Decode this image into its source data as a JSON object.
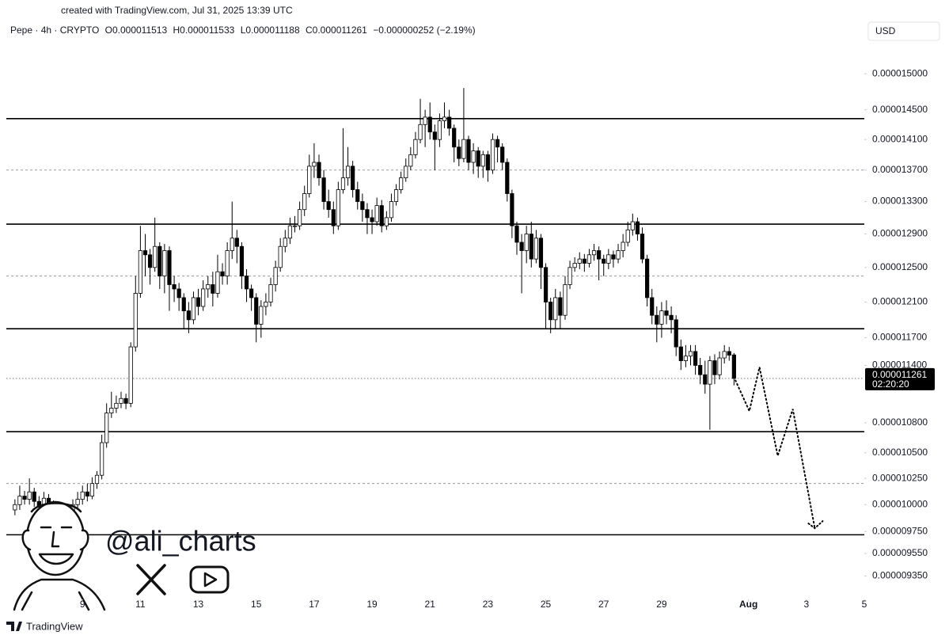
{
  "chart_data": {
    "type": "candlestick",
    "watermark": "created with TradingView.com, Jul 31, 2025 13:39 UTC",
    "symbol": "Pepe · 4h · CRYPTO",
    "ohlc_text": [
      "O0.000011513",
      "H0.000011533",
      "L0.000011188",
      "C0.000011261"
    ],
    "change_text": "−0.000000252 (−2.19%)",
    "currency": "USD",
    "handle": "@ali_charts",
    "footer": "TradingView",
    "log_scale": true,
    "grid": false,
    "up_color": "#ffffff",
    "down_color": "#000000",
    "wick_color": "#000000",
    "xlim": [
      6.37,
      36
    ],
    "xticks": [
      9,
      11,
      13,
      15,
      17,
      19,
      21,
      23,
      25,
      27,
      29,
      {
        "value": 32,
        "label": "Aug"
      },
      {
        "value": 34,
        "label": "3"
      },
      {
        "value": 36,
        "label": "5"
      }
    ],
    "ylim": [
      9.16e-06,
      1.549e-05
    ],
    "yticks": [
      {
        "value": 1.5e-05,
        "label": "0.000015000"
      },
      {
        "value": 1.45e-05,
        "label": "0.000014500"
      },
      {
        "value": 1.41e-05,
        "label": "0.000014100"
      },
      {
        "value": 1.37e-05,
        "label": "0.000013700"
      },
      {
        "value": 1.33e-05,
        "label": "0.000013300"
      },
      {
        "value": 1.29e-05,
        "label": "0.000012900"
      },
      {
        "value": 1.25e-05,
        "label": "0.000012500"
      },
      {
        "value": 1.21e-05,
        "label": "0.000012100"
      },
      {
        "value": 1.17e-05,
        "label": "0.000011700"
      },
      {
        "value": 1.14e-05,
        "label": "0.000011400"
      },
      {
        "value": 1.08e-05,
        "label": "0.000010800"
      },
      {
        "value": 1.05e-05,
        "label": "0.000010500"
      },
      {
        "value": 1.025e-05,
        "label": "0.000010250"
      },
      {
        "value": 1e-05,
        "label": "0.000010000"
      },
      {
        "value": 9.75e-06,
        "label": "0.000009750"
      },
      {
        "value": 9.55e-06,
        "label": "0.000009550"
      },
      {
        "value": 9.35e-06,
        "label": "0.000009350"
      }
    ],
    "last_price": {
      "value": 1.1261e-05,
      "label": "0.000011261"
    },
    "countdown": "02:20:20",
    "levels": {
      "solid": [
        1.438e-05,
        1.302e-05,
        1.18e-05,
        1.071e-05,
        9.72e-06
      ],
      "dotted": [
        1.37e-05,
        1.24e-05,
        1.02e-05
      ]
    },
    "projection": {
      "x": [
        31.55,
        32.03,
        32.38,
        33.01,
        33.53,
        34.29
      ],
      "values": [
        1.124e-05,
        1.092e-05,
        1.138e-05,
        1.047e-05,
        1.094e-05,
        9.78e-06
      ]
    },
    "x": [
      6.667,
      6.833,
      7,
      7.167,
      7.333,
      7.5,
      7.667,
      7.833,
      8,
      8.167,
      8.333,
      8.5,
      8.667,
      8.833,
      9,
      9.167,
      9.333,
      9.5,
      9.667,
      9.833,
      10,
      10.167,
      10.333,
      10.5,
      10.667,
      10.833,
      11,
      11.167,
      11.333,
      11.5,
      11.667,
      11.833,
      12,
      12.167,
      12.333,
      12.5,
      12.667,
      12.833,
      13,
      13.167,
      13.333,
      13.5,
      13.667,
      13.833,
      14,
      14.167,
      14.333,
      14.5,
      14.667,
      14.833,
      15,
      15.167,
      15.333,
      15.5,
      15.667,
      15.833,
      16,
      16.167,
      16.333,
      16.5,
      16.667,
      16.833,
      17,
      17.167,
      17.333,
      17.5,
      17.667,
      17.833,
      18,
      18.167,
      18.333,
      18.5,
      18.667,
      18.833,
      19,
      19.167,
      19.333,
      19.5,
      19.667,
      19.833,
      20,
      20.167,
      20.333,
      20.5,
      20.667,
      20.833,
      21,
      21.167,
      21.333,
      21.5,
      21.667,
      21.833,
      22,
      22.167,
      22.333,
      22.5,
      22.667,
      22.833,
      23,
      23.167,
      23.333,
      23.5,
      23.667,
      23.833,
      24,
      24.167,
      24.333,
      24.5,
      24.667,
      24.833,
      25,
      25.167,
      25.333,
      25.5,
      25.667,
      25.833,
      26,
      26.167,
      26.333,
      26.5,
      26.667,
      26.833,
      27,
      27.167,
      27.333,
      27.5,
      27.667,
      27.833,
      28,
      28.167,
      28.333,
      28.5,
      28.667,
      28.833,
      29,
      29.167,
      29.333,
      29.5,
      29.667,
      29.833,
      30,
      30.167,
      30.333,
      30.5,
      30.667,
      30.833,
      31,
      31.167,
      31.333,
      31.5
    ],
    "series": {
      "open": [
        9.95e-06,
        1e-05,
        1.008e-05,
        1.005e-05,
        1.012e-05,
        1.003e-05,
        9.98e-06,
        1.006e-05,
        1e-05,
        9.92e-06,
        9.85e-06,
        9.95e-06,
        9.9e-06,
        1e-05,
        1.005e-05,
        1.012e-05,
        1.008e-05,
        1.02e-05,
        1.028e-05,
        1.06e-05,
        1.09e-05,
        1.095e-05,
        1.1e-05,
        1.105e-05,
        1.1e-05,
        1.16e-05,
        1.22e-05,
        1.27e-05,
        1.265e-05,
        1.25e-05,
        1.275e-05,
        1.24e-05,
        1.27e-05,
        1.23e-05,
        1.225e-05,
        1.215e-05,
        1.2e-05,
        1.19e-05,
        1.215e-05,
        1.205e-05,
        1.225e-05,
        1.23e-05,
        1.22e-05,
        1.245e-05,
        1.24e-05,
        1.27e-05,
        1.285e-05,
        1.275e-05,
        1.24e-05,
        1.225e-05,
        1.215e-05,
        1.185e-05,
        1.205e-05,
        1.21e-05,
        1.23e-05,
        1.25e-05,
        1.275e-05,
        1.285e-05,
        1.3e-05,
        1.3e-05,
        1.32e-05,
        1.34e-05,
        1.375e-05,
        1.38e-05,
        1.36e-05,
        1.33e-05,
        1.32e-05,
        1.3e-05,
        1.345e-05,
        1.36e-05,
        1.375e-05,
        1.345e-05,
        1.33e-05,
        1.32e-05,
        1.31e-05,
        1.305e-05,
        1.325e-05,
        1.3e-05,
        1.31e-05,
        1.33e-05,
        1.345e-05,
        1.36e-05,
        1.375e-05,
        1.39e-05,
        1.41e-05,
        1.43e-05,
        1.44e-05,
        1.42e-05,
        1.41e-05,
        1.435e-05,
        1.44e-05,
        1.425e-05,
        1.4e-05,
        1.385e-05,
        1.41e-05,
        1.38e-05,
        1.395e-05,
        1.375e-05,
        1.39e-05,
        1.37e-05,
        1.41e-05,
        1.4e-05,
        1.38e-05,
        1.34e-05,
        1.3e-05,
        1.28e-05,
        1.27e-05,
        1.29e-05,
        1.26e-05,
        1.285e-05,
        1.25e-05,
        1.21e-05,
        1.19e-05,
        1.215e-05,
        1.195e-05,
        1.23e-05,
        1.25e-05,
        1.255e-05,
        1.26e-05,
        1.255e-05,
        1.265e-05,
        1.27e-05,
        1.26e-05,
        1.255e-05,
        1.265e-05,
        1.26e-05,
        1.27e-05,
        1.28e-05,
        1.295e-05,
        1.305e-05,
        1.29e-05,
        1.26e-05,
        1.215e-05,
        1.195e-05,
        1.185e-05,
        1.2e-05,
        1.195e-05,
        1.19e-05,
        1.16e-05,
        1.145e-05,
        1.15e-05,
        1.155e-05,
        1.14e-05,
        1.13e-05,
        1.12e-05,
        1.145e-05,
        1.13e-05,
        1.148e-05,
        1.155e-05,
        1.1513e-05
      ],
      "high": [
        1.005e-05,
        1.018e-05,
        1.013e-05,
        1.025e-05,
        1.016e-05,
        1.008e-05,
        1.012e-05,
        1.01e-05,
        1.004e-05,
        9.96e-06,
        1e-05,
        1e-05,
        1.005e-05,
        1.012e-05,
        1.018e-05,
        1.02e-05,
        1.026e-05,
        1.032e-05,
        1.068e-05,
        1.1e-05,
        1.112e-05,
        1.108e-05,
        1.112e-05,
        1.11e-05,
        1.165e-05,
        1.24e-05,
        1.3e-05,
        1.29e-05,
        1.272e-05,
        1.31e-05,
        1.28e-05,
        1.278e-05,
        1.275e-05,
        1.24e-05,
        1.232e-05,
        1.22e-05,
        1.21e-05,
        1.222e-05,
        1.225e-05,
        1.235e-05,
        1.24e-05,
        1.245e-05,
        1.265e-05,
        1.255e-05,
        1.28e-05,
        1.33e-05,
        1.295e-05,
        1.28e-05,
        1.248e-05,
        1.23e-05,
        1.22e-05,
        1.212e-05,
        1.22e-05,
        1.238e-05,
        1.258e-05,
        1.285e-05,
        1.295e-05,
        1.31e-05,
        1.312e-05,
        1.33e-05,
        1.35e-05,
        1.39e-05,
        1.405e-05,
        1.39e-05,
        1.37e-05,
        1.345e-05,
        1.33e-05,
        1.355e-05,
        1.425e-05,
        1.4e-05,
        1.382e-05,
        1.355e-05,
        1.34e-05,
        1.328e-05,
        1.32e-05,
        1.335e-05,
        1.332e-05,
        1.318e-05,
        1.34e-05,
        1.352e-05,
        1.368e-05,
        1.385e-05,
        1.4e-05,
        1.42e-05,
        1.465e-05,
        1.45e-05,
        1.46e-05,
        1.43e-05,
        1.445e-05,
        1.46e-05,
        1.45e-05,
        1.43e-05,
        1.41e-05,
        1.48e-05,
        1.415e-05,
        1.405e-05,
        1.4e-05,
        1.395e-05,
        1.395e-05,
        1.418e-05,
        1.415e-05,
        1.405e-05,
        1.385e-05,
        1.345e-05,
        1.305e-05,
        1.29e-05,
        1.3e-05,
        1.305e-05,
        1.295e-05,
        1.29e-05,
        1.255e-05,
        1.215e-05,
        1.225e-05,
        1.222e-05,
        1.24e-05,
        1.258e-05,
        1.262e-05,
        1.268e-05,
        1.266e-05,
        1.272e-05,
        1.278e-05,
        1.275e-05,
        1.265e-05,
        1.272e-05,
        1.27e-05,
        1.278e-05,
        1.29e-05,
        1.305e-05,
        1.315e-05,
        1.31e-05,
        1.298e-05,
        1.265e-05,
        1.225e-05,
        1.205e-05,
        1.21e-05,
        1.212e-05,
        1.205e-05,
        1.195e-05,
        1.168e-05,
        1.162e-05,
        1.162e-05,
        1.162e-05,
        1.148e-05,
        1.145e-05,
        1.15e-05,
        1.152e-05,
        1.155e-05,
        1.162e-05,
        1.16e-05,
        1.1533e-05
      ],
      "low": [
        9.9e-06,
        9.95e-06,
        1e-05,
        1e-05,
        9.98e-06,
        9.9e-06,
        9.93e-06,
        9.95e-06,
        9.85e-06,
        9.75e-06,
        9.8e-06,
        9.82e-06,
        9.85e-06,
        9.96e-06,
        1e-05,
        1.003e-05,
        1.005e-05,
        1.015e-05,
        1.024e-05,
        1.055e-05,
        1.085e-05,
        1.09e-05,
        1.095e-05,
        1.094e-05,
        1.096e-05,
        1.155e-05,
        1.215e-05,
        1.24e-05,
        1.23e-05,
        1.245e-05,
        1.225e-05,
        1.22e-05,
        1.2e-05,
        1.21e-05,
        1.2e-05,
        1.18e-05,
        1.175e-05,
        1.185e-05,
        1.195e-05,
        1.2e-05,
        1.215e-05,
        1.205e-05,
        1.215e-05,
        1.23e-05,
        1.23e-05,
        1.26e-05,
        1.255e-05,
        1.225e-05,
        1.21e-05,
        1.2e-05,
        1.165e-05,
        1.17e-05,
        1.195e-05,
        1.205e-05,
        1.222e-05,
        1.245e-05,
        1.268e-05,
        1.278e-05,
        1.292e-05,
        1.295e-05,
        1.312e-05,
        1.335e-05,
        1.36e-05,
        1.35e-05,
        1.32e-05,
        1.31e-05,
        1.29e-05,
        1.295e-05,
        1.34e-05,
        1.35e-05,
        1.335e-05,
        1.32e-05,
        1.305e-05,
        1.29e-05,
        1.29e-05,
        1.3e-05,
        1.292e-05,
        1.295e-05,
        1.305e-05,
        1.325e-05,
        1.34e-05,
        1.355e-05,
        1.37e-05,
        1.385e-05,
        1.405e-05,
        1.4e-05,
        1.41e-05,
        1.37e-05,
        1.4e-05,
        1.425e-05,
        1.415e-05,
        1.38e-05,
        1.375e-05,
        1.38e-05,
        1.37e-05,
        1.365e-05,
        1.36e-05,
        1.36e-05,
        1.355e-05,
        1.365e-05,
        1.38e-05,
        1.37e-05,
        1.33e-05,
        1.285e-05,
        1.265e-05,
        1.22e-05,
        1.255e-05,
        1.25e-05,
        1.255e-05,
        1.225e-05,
        1.18e-05,
        1.175e-05,
        1.18e-05,
        1.18e-05,
        1.19e-05,
        1.225e-05,
        1.245e-05,
        1.248e-05,
        1.245e-05,
        1.25e-05,
        1.258e-05,
        1.235e-05,
        1.24e-05,
        1.248e-05,
        1.25e-05,
        1.255e-05,
        1.262e-05,
        1.275e-05,
        1.288e-05,
        1.282e-05,
        1.255e-05,
        1.205e-05,
        1.185e-05,
        1.165e-05,
        1.17e-05,
        1.185e-05,
        1.175e-05,
        1.15e-05,
        1.135e-05,
        1.138e-05,
        1.14e-05,
        1.13e-05,
        1.12e-05,
        1.11e-05,
        1.073e-05,
        1.12e-05,
        1.125e-05,
        1.142e-05,
        1.145e-05,
        1.1188e-05
      ],
      "close": [
        1e-05,
        1.008e-05,
        1.005e-05,
        1.012e-05,
        1.003e-05,
        9.98e-06,
        1.006e-05,
        1e-05,
        9.92e-06,
        9.85e-06,
        9.95e-06,
        9.9e-06,
        1e-05,
        1.005e-05,
        1.012e-05,
        1.008e-05,
        1.02e-05,
        1.028e-05,
        1.06e-05,
        1.09e-05,
        1.095e-05,
        1.1e-05,
        1.105e-05,
        1.1e-05,
        1.16e-05,
        1.22e-05,
        1.27e-05,
        1.265e-05,
        1.25e-05,
        1.275e-05,
        1.24e-05,
        1.27e-05,
        1.23e-05,
        1.225e-05,
        1.215e-05,
        1.2e-05,
        1.19e-05,
        1.215e-05,
        1.205e-05,
        1.225e-05,
        1.23e-05,
        1.22e-05,
        1.245e-05,
        1.24e-05,
        1.27e-05,
        1.285e-05,
        1.275e-05,
        1.24e-05,
        1.225e-05,
        1.215e-05,
        1.185e-05,
        1.205e-05,
        1.21e-05,
        1.23e-05,
        1.25e-05,
        1.275e-05,
        1.285e-05,
        1.3e-05,
        1.3e-05,
        1.32e-05,
        1.34e-05,
        1.375e-05,
        1.38e-05,
        1.36e-05,
        1.33e-05,
        1.32e-05,
        1.3e-05,
        1.345e-05,
        1.36e-05,
        1.375e-05,
        1.345e-05,
        1.33e-05,
        1.32e-05,
        1.31e-05,
        1.305e-05,
        1.325e-05,
        1.3e-05,
        1.31e-05,
        1.33e-05,
        1.345e-05,
        1.36e-05,
        1.375e-05,
        1.39e-05,
        1.41e-05,
        1.43e-05,
        1.44e-05,
        1.42e-05,
        1.41e-05,
        1.435e-05,
        1.44e-05,
        1.425e-05,
        1.4e-05,
        1.385e-05,
        1.41e-05,
        1.38e-05,
        1.395e-05,
        1.375e-05,
        1.39e-05,
        1.37e-05,
        1.41e-05,
        1.4e-05,
        1.38e-05,
        1.34e-05,
        1.3e-05,
        1.28e-05,
        1.27e-05,
        1.29e-05,
        1.26e-05,
        1.285e-05,
        1.25e-05,
        1.21e-05,
        1.19e-05,
        1.215e-05,
        1.195e-05,
        1.23e-05,
        1.25e-05,
        1.255e-05,
        1.26e-05,
        1.255e-05,
        1.265e-05,
        1.27e-05,
        1.26e-05,
        1.255e-05,
        1.265e-05,
        1.26e-05,
        1.27e-05,
        1.28e-05,
        1.295e-05,
        1.305e-05,
        1.29e-05,
        1.26e-05,
        1.215e-05,
        1.195e-05,
        1.185e-05,
        1.2e-05,
        1.195e-05,
        1.19e-05,
        1.16e-05,
        1.145e-05,
        1.15e-05,
        1.155e-05,
        1.14e-05,
        1.13e-05,
        1.12e-05,
        1.145e-05,
        1.13e-05,
        1.148e-05,
        1.155e-05,
        1.151e-05,
        1.1261e-05
      ]
    }
  }
}
